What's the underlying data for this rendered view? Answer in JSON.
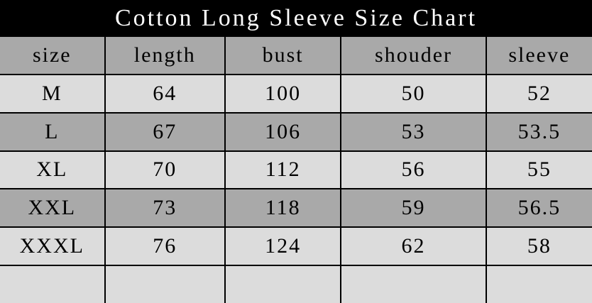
{
  "title": "Cotton Long Sleeve Size Chart",
  "colors": {
    "title_bg": "#000000",
    "title_text": "#ffffff",
    "header_bg": "#a9a9a9",
    "row_dark_bg": "#a9a9a9",
    "row_light_bg": "#dcdcdc",
    "grid_border": "#000000",
    "cell_text": "#000000"
  },
  "chart_data": {
    "type": "table",
    "title": "Cotton Long Sleeve Size Chart",
    "columns": [
      "size",
      "length",
      "bust",
      "shouder",
      "sleeve"
    ],
    "rows": [
      [
        "M",
        "64",
        "100",
        "50",
        "52"
      ],
      [
        "L",
        "67",
        "106",
        "53",
        "53.5"
      ],
      [
        "XL",
        "70",
        "112",
        "56",
        "55"
      ],
      [
        "XXL",
        "73",
        "118",
        "59",
        "56.5"
      ],
      [
        "XXXL",
        "76",
        "124",
        "62",
        "58"
      ],
      [
        "",
        "",
        "",
        "",
        ""
      ]
    ],
    "layout": {
      "header_row_shaded": true,
      "alternating_rows": true,
      "grid": true
    }
  }
}
